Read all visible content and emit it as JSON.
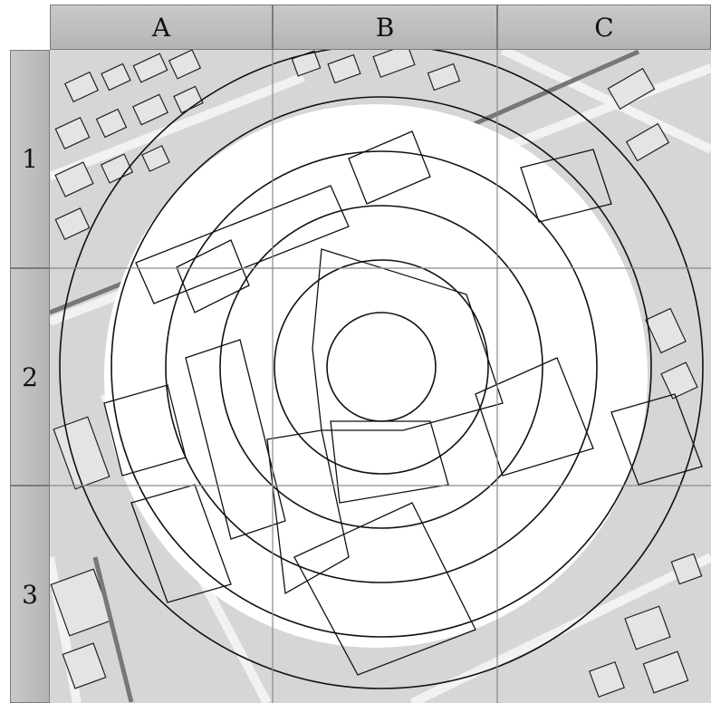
{
  "grid": {
    "columns": [
      "A",
      "B",
      "C"
    ],
    "rows": [
      "1",
      "2",
      "3"
    ]
  },
  "map": {
    "rings_count": 5,
    "colors": {
      "background": "#d6d6d6",
      "clear_zone": "#ffffff",
      "lines": "#111111",
      "grid": "#888888",
      "header": "#c0c0c0"
    }
  }
}
